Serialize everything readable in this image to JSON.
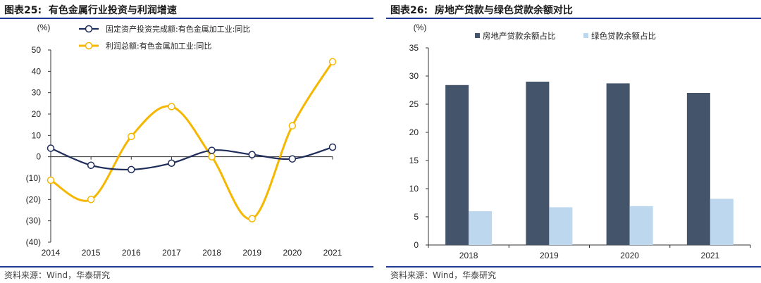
{
  "left": {
    "figure_label": "图表25:",
    "title": "有色金属行业投资与利润增速",
    "source": "资料来源：Wind，华泰研究",
    "colors": {
      "investment": "#1f2d5a",
      "profit": "#f5b700",
      "axis": "#333333"
    },
    "chart_data": {
      "type": "line",
      "ylabel": "(%)",
      "ylim": [
        -40,
        50
      ],
      "yticks": [
        50,
        40,
        30,
        20,
        10,
        0,
        -10,
        -20,
        -30,
        -40
      ],
      "ytick_labels": [
        "50",
        "40",
        "30",
        "20",
        "10",
        "0",
        "(10)",
        "(20)",
        "(30)",
        "(40)"
      ],
      "x": [
        "2014",
        "2015",
        "2016",
        "2017",
        "2018",
        "2019",
        "2020",
        "2021"
      ],
      "legend_position": "top",
      "grid": false,
      "smooth": true,
      "series": [
        {
          "name": "固定资产投资完成额:有色金属加工业:同比",
          "values": [
            4.0,
            -4.0,
            -6.0,
            -3.0,
            3.0,
            1.0,
            -1.0,
            4.5
          ]
        },
        {
          "name": "利润总额:有色金属加工业:同比",
          "values": [
            -11.0,
            -20.0,
            9.5,
            23.5,
            0.0,
            -29.0,
            14.5,
            44.5
          ]
        }
      ]
    }
  },
  "right": {
    "figure_label": "图表26:",
    "title": "房地产贷款与绿色贷款余额对比",
    "source": "资料来源：Wind，华泰研究",
    "colors": {
      "real_estate": "#44546a",
      "green": "#bdd7ee",
      "axis": "#333333"
    },
    "chart_data": {
      "type": "bar",
      "ylabel": "(%)",
      "ylim": [
        0,
        35
      ],
      "yticks": [
        35,
        30,
        25,
        20,
        15,
        10,
        5,
        0
      ],
      "categories": [
        "2018",
        "2019",
        "2020",
        "2021"
      ],
      "legend_position": "top",
      "grid": false,
      "series": [
        {
          "name": "房地产贷款余额占比",
          "values": [
            28.4,
            29.0,
            28.7,
            27.0
          ]
        },
        {
          "name": "绿色贷款余额占比",
          "values": [
            6.0,
            6.7,
            6.9,
            8.2
          ]
        }
      ]
    }
  }
}
